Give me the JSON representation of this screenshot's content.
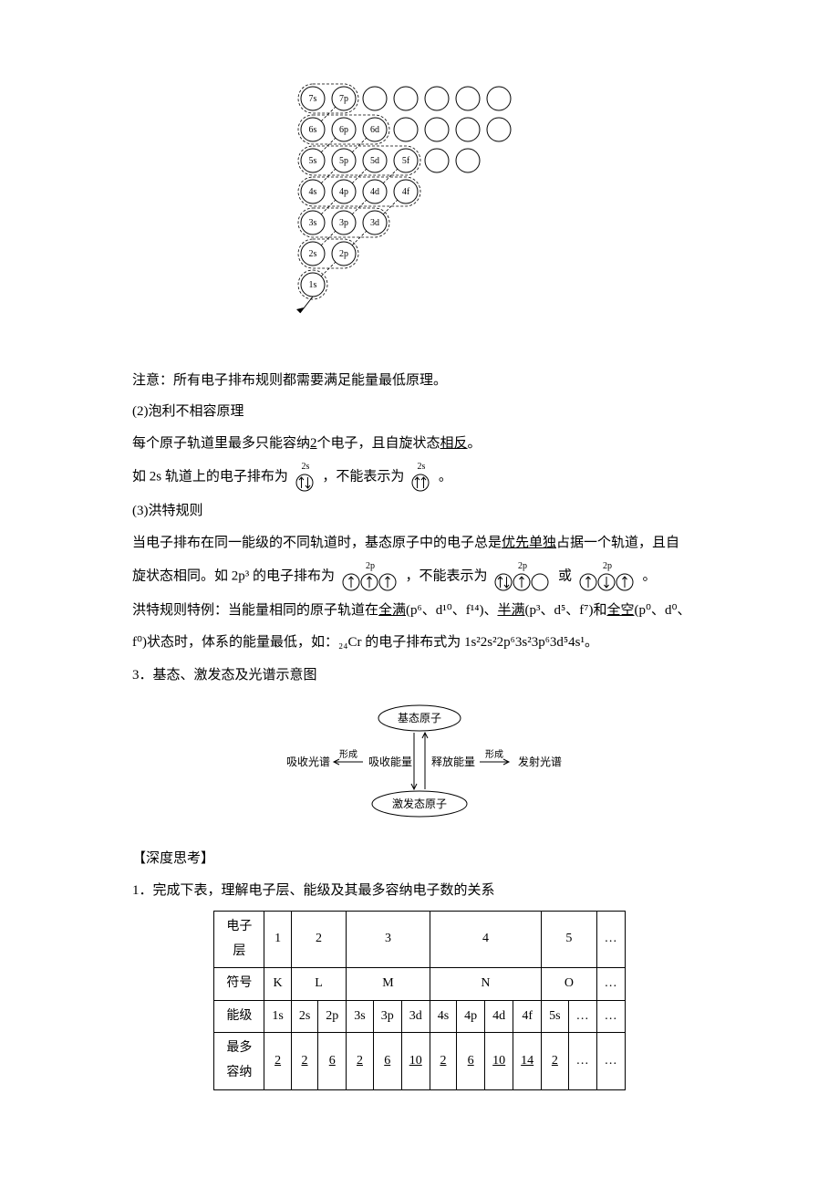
{
  "orbital_diagram": {
    "rows": [
      [
        "7s",
        "7p",
        "",
        "",
        "",
        "",
        ""
      ],
      [
        "6s",
        "6p",
        "6d",
        "",
        "",
        "",
        ""
      ],
      [
        "5s",
        "5p",
        "5d",
        "5f",
        "",
        ""
      ],
      [
        "4s",
        "4p",
        "4d",
        "4f"
      ],
      [
        "3s",
        "3p",
        "3d"
      ],
      [
        "2s",
        "2p"
      ],
      [
        "1s"
      ]
    ],
    "circle_stroke": "#000000",
    "text_fontsize": 10
  },
  "t_note": "注意：所有电子排布规则都需要满足能量最低原理。",
  "sec2": {
    "title": "(2)泡利不相容原理",
    "line1_a": "每个原子轨道里最多只能容纳",
    "line1_u": "2",
    "line1_b": "个电子，且自旋状态",
    "line1_u2": "相反",
    "line1_c": "。",
    "line2_a": "如 2s 轨道上的电子排布为",
    "line2_b": "，不能表示为",
    "line2_c": "。",
    "box_label": "2s",
    "arrows_ok": [
      "up",
      "down"
    ],
    "arrows_bad": [
      "up",
      "up"
    ]
  },
  "sec3": {
    "title": "(3)洪特规则",
    "line1_a": "当电子排布在同一能级的不同轨道时，基态原子中的电子总是",
    "line1_u": "优先单独",
    "line1_b": "占据一个轨道，且自",
    "line2_a": "旋状态相同。如 2p³ 的电子排布为",
    "line2_b": "，不能表示为",
    "line2_c": "或",
    "line2_d": "。",
    "box_label": "2p",
    "special_a": "洪特规则特例：当能量相同的原子轨道在",
    "special_u1": "全满",
    "special_b": "(p⁶、d¹⁰、f¹⁴)、",
    "special_u2": "半满",
    "special_c": "(p³、d⁵、f⁷)和",
    "special_u3": "全空",
    "special_d": "(p⁰、d⁰、",
    "special_e": "f⁰)状态时，体系的能量最低，如：₂₄Cr 的电子排布式为 1s²2s²2p⁶3s²3p⁶3d⁵4s¹。"
  },
  "sec_spectrum": {
    "title": "3．基态、激发态及光谱示意图",
    "top": "基态原子",
    "bottom": "激发态原子",
    "left1": "吸收光谱",
    "left_arrow_lbl": "形成",
    "left2": "吸收能量",
    "right1": "释放能量",
    "right_arrow_lbl": "形成",
    "right2": "发射光谱",
    "box_stroke": "#000000",
    "text_fontsize": 12
  },
  "deep": {
    "hdr": "【深度思考】",
    "q1": "1．完成下表，理解电子层、能级及其最多容纳电子数的关系"
  },
  "table": {
    "row_headers": [
      "电子层",
      "符号",
      "能级",
      "最多容纳"
    ],
    "shells": [
      "1",
      "2",
      "3",
      "4",
      "5",
      "…"
    ],
    "symbols": [
      "K",
      "L",
      "M",
      "N",
      "O",
      "…"
    ],
    "sublevels": [
      "1s",
      "2s",
      "2p",
      "3s",
      "3p",
      "3d",
      "4s",
      "4p",
      "4d",
      "4f",
      "5s",
      "…",
      "…"
    ],
    "maxelec": [
      "2",
      "2",
      "6",
      "2",
      "6",
      "10",
      "2",
      "6",
      "10",
      "14",
      "2",
      "…",
      "…"
    ],
    "colspans_shell": [
      1,
      2,
      3,
      4,
      2,
      1
    ],
    "border_color": "#000000"
  }
}
